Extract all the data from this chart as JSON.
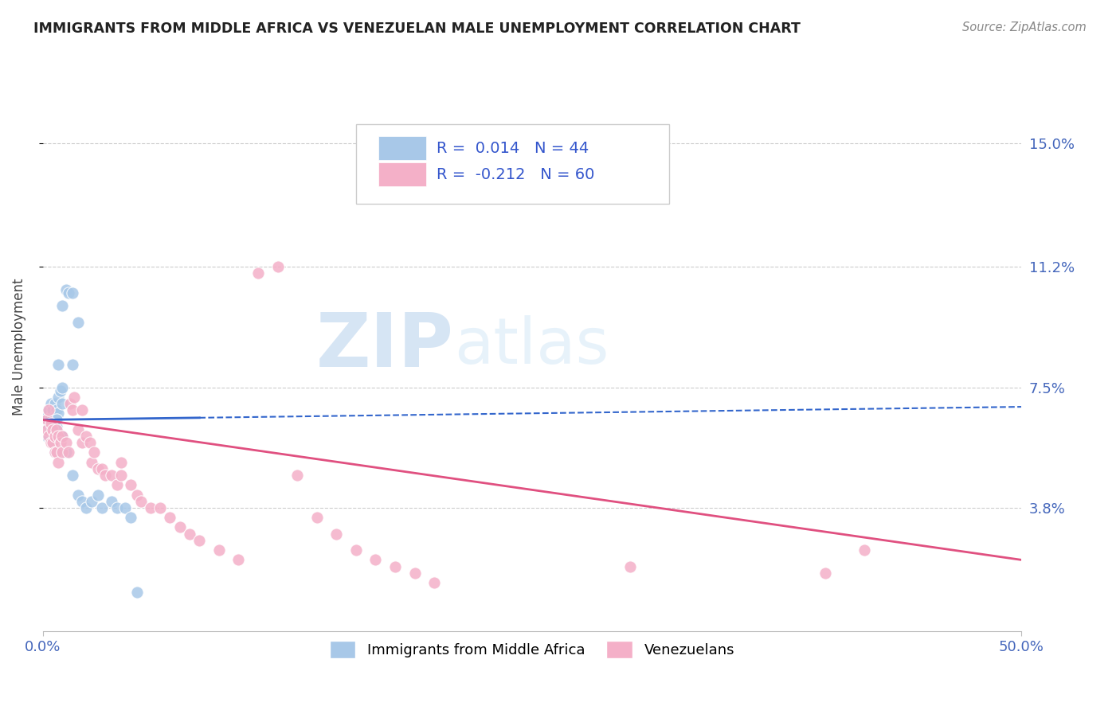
{
  "title": "IMMIGRANTS FROM MIDDLE AFRICA VS VENEZUELAN MALE UNEMPLOYMENT CORRELATION CHART",
  "source": "Source: ZipAtlas.com",
  "ylabel": "Male Unemployment",
  "xlim": [
    0.0,
    0.5
  ],
  "ylim": [
    0.0,
    0.175
  ],
  "xticklabels": [
    "0.0%",
    "50.0%"
  ],
  "xtick_positions": [
    0.0,
    0.5
  ],
  "ytick_labels_right": [
    "15.0%",
    "11.2%",
    "7.5%",
    "3.8%"
  ],
  "ytick_values_right": [
    0.15,
    0.112,
    0.075,
    0.038
  ],
  "blue_R": "0.014",
  "blue_N": "44",
  "pink_R": "-0.212",
  "pink_N": "60",
  "blue_color": "#a8c8e8",
  "pink_color": "#f4b0c8",
  "blue_line_color": "#3366cc",
  "pink_line_color": "#e05080",
  "watermark_zip": "ZIP",
  "watermark_atlas": "atlas",
  "legend_label_blue": "Immigrants from Middle Africa",
  "legend_label_pink": "Venezuelans",
  "blue_scatter_x": [
    0.002,
    0.003,
    0.003,
    0.004,
    0.004,
    0.005,
    0.005,
    0.006,
    0.006,
    0.007,
    0.007,
    0.008,
    0.008,
    0.009,
    0.01,
    0.01,
    0.01,
    0.012,
    0.013,
    0.015,
    0.015,
    0.018,
    0.002,
    0.003,
    0.004,
    0.005,
    0.006,
    0.007,
    0.008,
    0.009,
    0.01,
    0.012,
    0.015,
    0.018,
    0.02,
    0.022,
    0.025,
    0.028,
    0.03,
    0.035,
    0.038,
    0.042,
    0.045,
    0.048
  ],
  "blue_scatter_y": [
    0.066,
    0.068,
    0.064,
    0.07,
    0.066,
    0.068,
    0.065,
    0.07,
    0.066,
    0.068,
    0.063,
    0.072,
    0.067,
    0.074,
    0.075,
    0.07,
    0.1,
    0.105,
    0.104,
    0.104,
    0.082,
    0.095,
    0.06,
    0.063,
    0.062,
    0.058,
    0.055,
    0.065,
    0.082,
    0.06,
    0.06,
    0.055,
    0.048,
    0.042,
    0.04,
    0.038,
    0.04,
    0.042,
    0.038,
    0.04,
    0.038,
    0.038,
    0.035,
    0.012
  ],
  "pink_scatter_x": [
    0.002,
    0.002,
    0.003,
    0.003,
    0.004,
    0.004,
    0.005,
    0.005,
    0.006,
    0.006,
    0.007,
    0.007,
    0.008,
    0.008,
    0.009,
    0.01,
    0.01,
    0.012,
    0.013,
    0.014,
    0.015,
    0.016,
    0.018,
    0.02,
    0.02,
    0.022,
    0.024,
    0.025,
    0.026,
    0.028,
    0.03,
    0.032,
    0.035,
    0.038,
    0.04,
    0.04,
    0.045,
    0.048,
    0.05,
    0.055,
    0.06,
    0.065,
    0.07,
    0.075,
    0.08,
    0.09,
    0.1,
    0.11,
    0.12,
    0.13,
    0.14,
    0.15,
    0.16,
    0.17,
    0.18,
    0.19,
    0.2,
    0.3,
    0.4,
    0.42
  ],
  "pink_scatter_y": [
    0.065,
    0.062,
    0.068,
    0.06,
    0.064,
    0.058,
    0.062,
    0.058,
    0.06,
    0.055,
    0.062,
    0.055,
    0.06,
    0.052,
    0.058,
    0.06,
    0.055,
    0.058,
    0.055,
    0.07,
    0.068,
    0.072,
    0.062,
    0.058,
    0.068,
    0.06,
    0.058,
    0.052,
    0.055,
    0.05,
    0.05,
    0.048,
    0.048,
    0.045,
    0.048,
    0.052,
    0.045,
    0.042,
    0.04,
    0.038,
    0.038,
    0.035,
    0.032,
    0.03,
    0.028,
    0.025,
    0.022,
    0.11,
    0.112,
    0.048,
    0.035,
    0.03,
    0.025,
    0.022,
    0.02,
    0.018,
    0.015,
    0.02,
    0.018,
    0.025
  ],
  "blue_line_x": [
    0.0,
    0.25,
    0.5
  ],
  "blue_line_y": [
    0.065,
    0.067,
    0.069
  ],
  "blue_line_solid_end": 0.08,
  "pink_line_x": [
    0.0,
    0.5
  ],
  "pink_line_y": [
    0.065,
    0.022
  ]
}
